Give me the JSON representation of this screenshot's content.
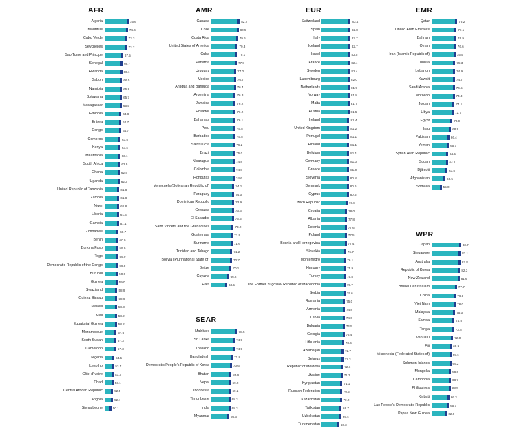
{
  "colors": {
    "bar": "#2bb5bf",
    "bar_end": "#1f3f8f"
  },
  "chart_data": [
    {
      "type": "bar",
      "orientation": "horizontal",
      "title": "AFR",
      "categories": [
        "Algeria",
        "Mauritius",
        "Cabo Verde",
        "Seychelles",
        "Sao Tome and Principe",
        "Senegal",
        "Rwanda",
        "Gabon",
        "Namibia",
        "Botswana",
        "Madagascar",
        "Ethiopia",
        "Eritrea",
        "Congo",
        "Comoros",
        "Kenya",
        "Mauritania",
        "South Africa",
        "Ghana",
        "Uganda",
        "United Republic of Tanzania",
        "Zambia",
        "Niger",
        "Liberia",
        "Gambia",
        "Zimbabwe",
        "Benin",
        "Burkina Faso",
        "Togo",
        "Democratic Republic of the Congo",
        "Burundi",
        "Guinea",
        "Swaziland",
        "Guinea-Bissau",
        "Malawi",
        "Mali",
        "Equatorial Guinea",
        "Mozambique",
        "South Sudan",
        "Cameroon",
        "Nigeria",
        "Lesotho",
        "Côte d'Ivoire",
        "Chad",
        "Central African Republic",
        "Angola",
        "Sierra Leone"
      ],
      "values": [
        75.6,
        74.6,
        73.3,
        73.2,
        67.5,
        66.7,
        66.1,
        66.0,
        65.8,
        65.7,
        65.5,
        64.8,
        64.7,
        64.7,
        63.5,
        63.4,
        63.1,
        62.9,
        62.4,
        62.3,
        61.8,
        61.8,
        61.8,
        61.4,
        61.1,
        60.7,
        60.0,
        59.9,
        59.9,
        59.8,
        59.6,
        59.0,
        58.9,
        58.9,
        58.3,
        58.2,
        58.2,
        57.6,
        57.3,
        57.3,
        54.5,
        53.7,
        53.3,
        53.1,
        52.5,
        52.4,
        50.1
      ]
    },
    {
      "type": "bar",
      "orientation": "horizontal",
      "title": "AMR",
      "categories": [
        "Canada",
        "Chile",
        "Costa Rica",
        "United States of America",
        "Cuba",
        "Panama",
        "Uruguay",
        "Mexico",
        "Antigua and Barbuda",
        "Argentina",
        "Jamaica",
        "Ecuador",
        "Bahamas",
        "Peru",
        "Barbados",
        "Saint Lucia",
        "Brazil",
        "Nicaragua",
        "Colombia",
        "Honduras",
        "Venezuela (Bolivarian Republic of)",
        "Paraguay",
        "Dominican Republic",
        "Grenada",
        "El Salvador",
        "Saint Vincent and the Grenadines",
        "Guatemala",
        "Suriname",
        "Trinidad and Tobago",
        "Bolivia (Plurinational State of)",
        "Belize",
        "Guyana",
        "Haiti"
      ],
      "values": [
        82.2,
        80.5,
        79.6,
        79.3,
        79.1,
        77.8,
        77.0,
        76.7,
        76.4,
        76.3,
        76.2,
        76.2,
        76.1,
        75.5,
        75.5,
        75.2,
        75.0,
        74.8,
        74.8,
        74.6,
        74.1,
        74.0,
        73.9,
        73.6,
        73.5,
        73.2,
        71.9,
        71.6,
        71.2,
        70.7,
        70.1,
        66.2,
        63.5
      ]
    },
    {
      "type": "bar",
      "orientation": "horizontal",
      "title": "SEAR",
      "categories": [
        "Maldives",
        "Sri Lanka",
        "Thailand",
        "Bangladesh",
        "Democratic People's Republic of Korea",
        "Bhutan",
        "Nepal",
        "Indonesia",
        "Timor Leste",
        "India",
        "Myanmar"
      ],
      "values": [
        78.5,
        74.9,
        74.9,
        71.8,
        70.6,
        69.8,
        69.2,
        69.1,
        68.3,
        68.3,
        66.6
      ]
    },
    {
      "type": "bar",
      "orientation": "horizontal",
      "title": "EUR",
      "categories": [
        "Switzerland",
        "Spain",
        "Italy",
        "Iceland",
        "Israel",
        "France",
        "Sweden",
        "Luxembourg",
        "Netherlands",
        "Norway",
        "Malta",
        "Austria",
        "Ireland",
        "United Kingdom",
        "Portugal",
        "Finland",
        "Belgium",
        "Germany",
        "Greece",
        "Slovenia",
        "Denmark",
        "Cyprus",
        "Czech Republic",
        "Croatia",
        "Albania",
        "Estonia",
        "Poland",
        "Bosnia and Herzegovina",
        "Slovakia",
        "Montenegro",
        "Hungary",
        "Turkey",
        "The Former Yugoslav Republic of Macedonia",
        "Serbia",
        "Romania",
        "Armenia",
        "Latvia",
        "Bulgaria",
        "Georgia",
        "Lithuania",
        "Azerbaijan",
        "Belarus",
        "Republic of Moldova",
        "Ukraine",
        "Kyrgyzstan",
        "Russian Federation",
        "Kazakhstan",
        "Tajikistan",
        "Uzbekistan",
        "Turkmenistan"
      ],
      "values": [
        83.4,
        82.8,
        82.7,
        82.7,
        82.5,
        82.4,
        82.4,
        82.0,
        81.9,
        81.8,
        81.7,
        81.5,
        81.4,
        81.2,
        81.1,
        81.1,
        81.1,
        81.0,
        81.0,
        80.8,
        80.6,
        80.5,
        78.8,
        78.0,
        77.8,
        77.6,
        77.5,
        77.4,
        76.7,
        76.1,
        75.9,
        75.8,
        75.7,
        75.6,
        75.0,
        74.8,
        74.6,
        74.5,
        74.4,
        73.6,
        72.7,
        72.3,
        72.1,
        71.3,
        71.1,
        70.5,
        70.2,
        69.7,
        69.4,
        66.3
      ]
    },
    {
      "type": "bar",
      "orientation": "horizontal",
      "title": "EMR",
      "categories": [
        "Qatar",
        "United Arab Emirates",
        "Bahrain",
        "Oman",
        "Iran (Islamic Republic of)",
        "Tunisia",
        "Lebanon",
        "Kuwait",
        "Saudi Arabia",
        "Morocco",
        "Jordan",
        "Libya",
        "Egypt",
        "Iraq",
        "Pakistan",
        "Yemen",
        "Syrian Arab Republic",
        "Sudan",
        "Djibouti",
        "Afghanistan",
        "Somalia"
      ],
      "values": [
        78.2,
        77.1,
        76.9,
        76.6,
        75.5,
        75.3,
        74.9,
        74.7,
        74.5,
        74.3,
        74.1,
        72.7,
        70.9,
        68.9,
        66.4,
        65.7,
        64.5,
        64.1,
        63.5,
        60.5,
        55.0
      ]
    },
    {
      "type": "bar",
      "orientation": "horizontal",
      "title": "WPR",
      "categories": [
        "Japan",
        "Singapore",
        "Australia",
        "Republic of Korea",
        "New Zealand",
        "Brunei Darussalam",
        "China",
        "Viet Nam",
        "Malaysia",
        "Samoa",
        "Tonga",
        "Vanuatu",
        "Fiji",
        "Micronesia (Federated States of)",
        "Solomon Islands",
        "Mongolia",
        "Cambodia",
        "Philippines",
        "Kiribati",
        "Lao People's Democratic Republic",
        "Papua New Guinea"
      ],
      "values": [
        83.7,
        83.1,
        82.8,
        82.3,
        81.6,
        77.7,
        76.1,
        76.0,
        75.0,
        74.0,
        73.5,
        72.0,
        69.9,
        69.4,
        69.2,
        68.8,
        68.7,
        68.5,
        66.3,
        65.7,
        62.9
      ]
    }
  ]
}
